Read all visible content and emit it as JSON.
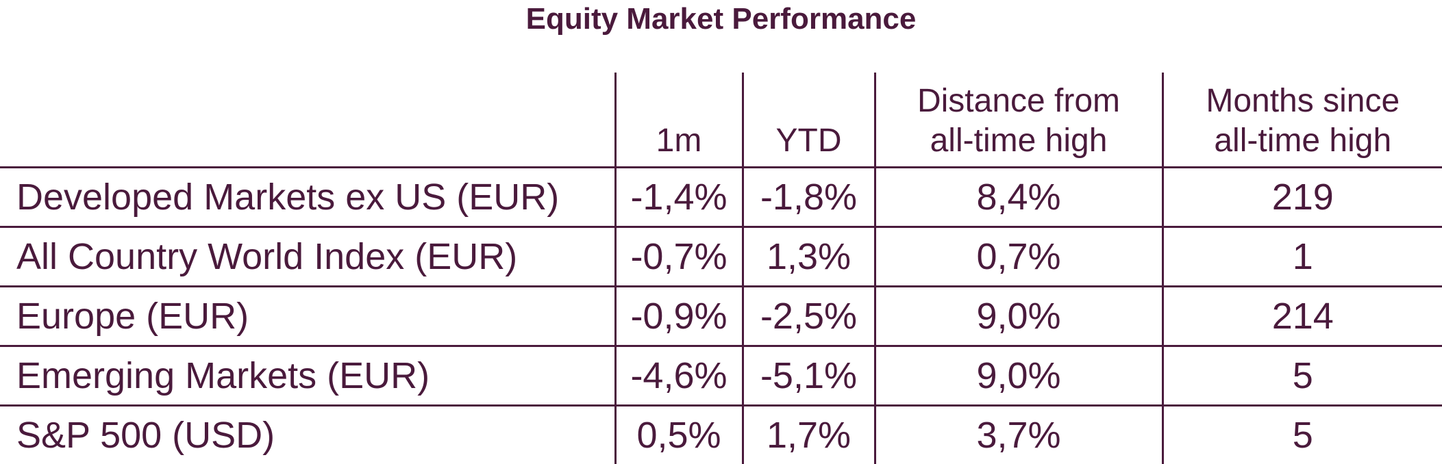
{
  "chart_data": {
    "type": "table",
    "title": "Equity Market Performance",
    "columns": [
      {
        "key": "name",
        "label_lines": [
          ""
        ]
      },
      {
        "key": "m1",
        "label_lines": [
          "1m"
        ]
      },
      {
        "key": "ytd",
        "label_lines": [
          "YTD"
        ]
      },
      {
        "key": "dist",
        "label_lines": [
          "Distance from",
          "all-time high"
        ]
      },
      {
        "key": "months",
        "label_lines": [
          "Months since",
          "all-time high"
        ]
      }
    ],
    "rows": [
      {
        "name": "Developed Markets ex US (EUR)",
        "m1": "-1,4%",
        "ytd": "-1,8%",
        "dist": "8,4%",
        "months": "219"
      },
      {
        "name": "All Country World Index (EUR)",
        "m1": "-0,7%",
        "ytd": "1,3%",
        "dist": "0,7%",
        "months": "1"
      },
      {
        "name": "Europe (EUR)",
        "m1": "-0,9%",
        "ytd": "-2,5%",
        "dist": "9,0%",
        "months": "214"
      },
      {
        "name": "Emerging Markets (EUR)",
        "m1": "-4,6%",
        "ytd": "-5,1%",
        "dist": "9,0%",
        "months": "5"
      },
      {
        "name": "S&P 500 (USD)",
        "m1": "0,5%",
        "ytd": "1,7%",
        "dist": "3,7%",
        "months": "5"
      }
    ]
  }
}
